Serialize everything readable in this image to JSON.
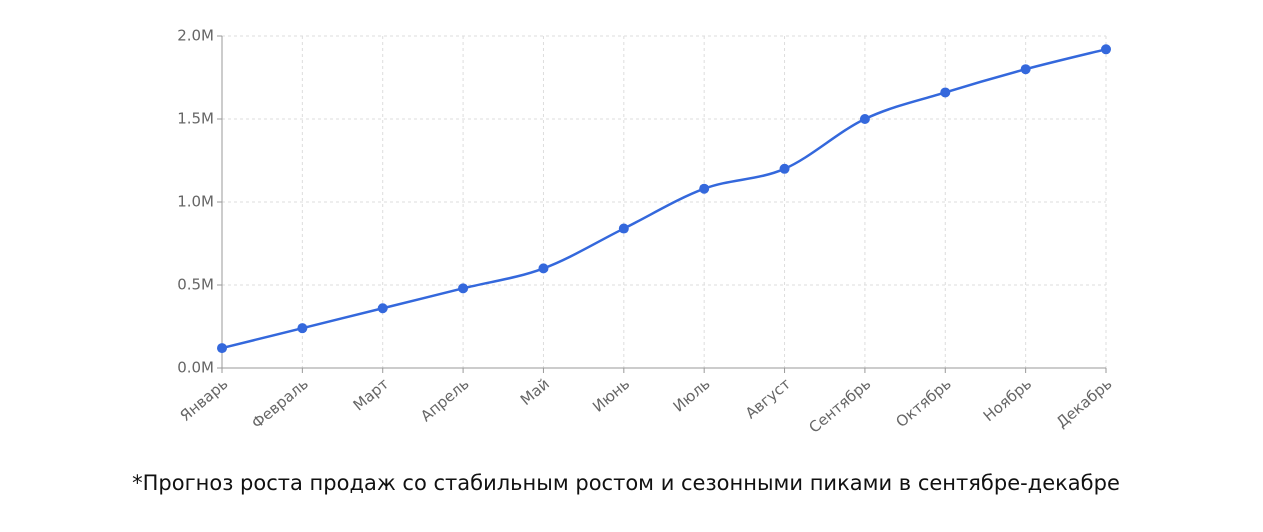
{
  "chart_data": {
    "type": "line",
    "categories": [
      "Январь",
      "Февраль",
      "Март",
      "Апрель",
      "Май",
      "Июнь",
      "Июль",
      "Август",
      "Сентябрь",
      "Октябрь",
      "Ноябрь",
      "Декабрь"
    ],
    "values": [
      120000,
      240000,
      360000,
      480000,
      600000,
      840000,
      1080000,
      1200000,
      1500000,
      1660000,
      1800000,
      1920000
    ],
    "color": "#3468dc",
    "ylim": [
      0,
      2000000
    ],
    "yticks": [
      {
        "value": 0,
        "label": "0.0M"
      },
      {
        "value": 500000,
        "label": "0.5M"
      },
      {
        "value": 1000000,
        "label": "1.0M"
      },
      {
        "value": 1500000,
        "label": "1.5M"
      },
      {
        "value": 2000000,
        "label": "2.0M"
      }
    ],
    "grid": true,
    "annotation": "*Прогноз роста продаж со стабильным ростом и сезонными пиками в сентябре-декабре"
  }
}
